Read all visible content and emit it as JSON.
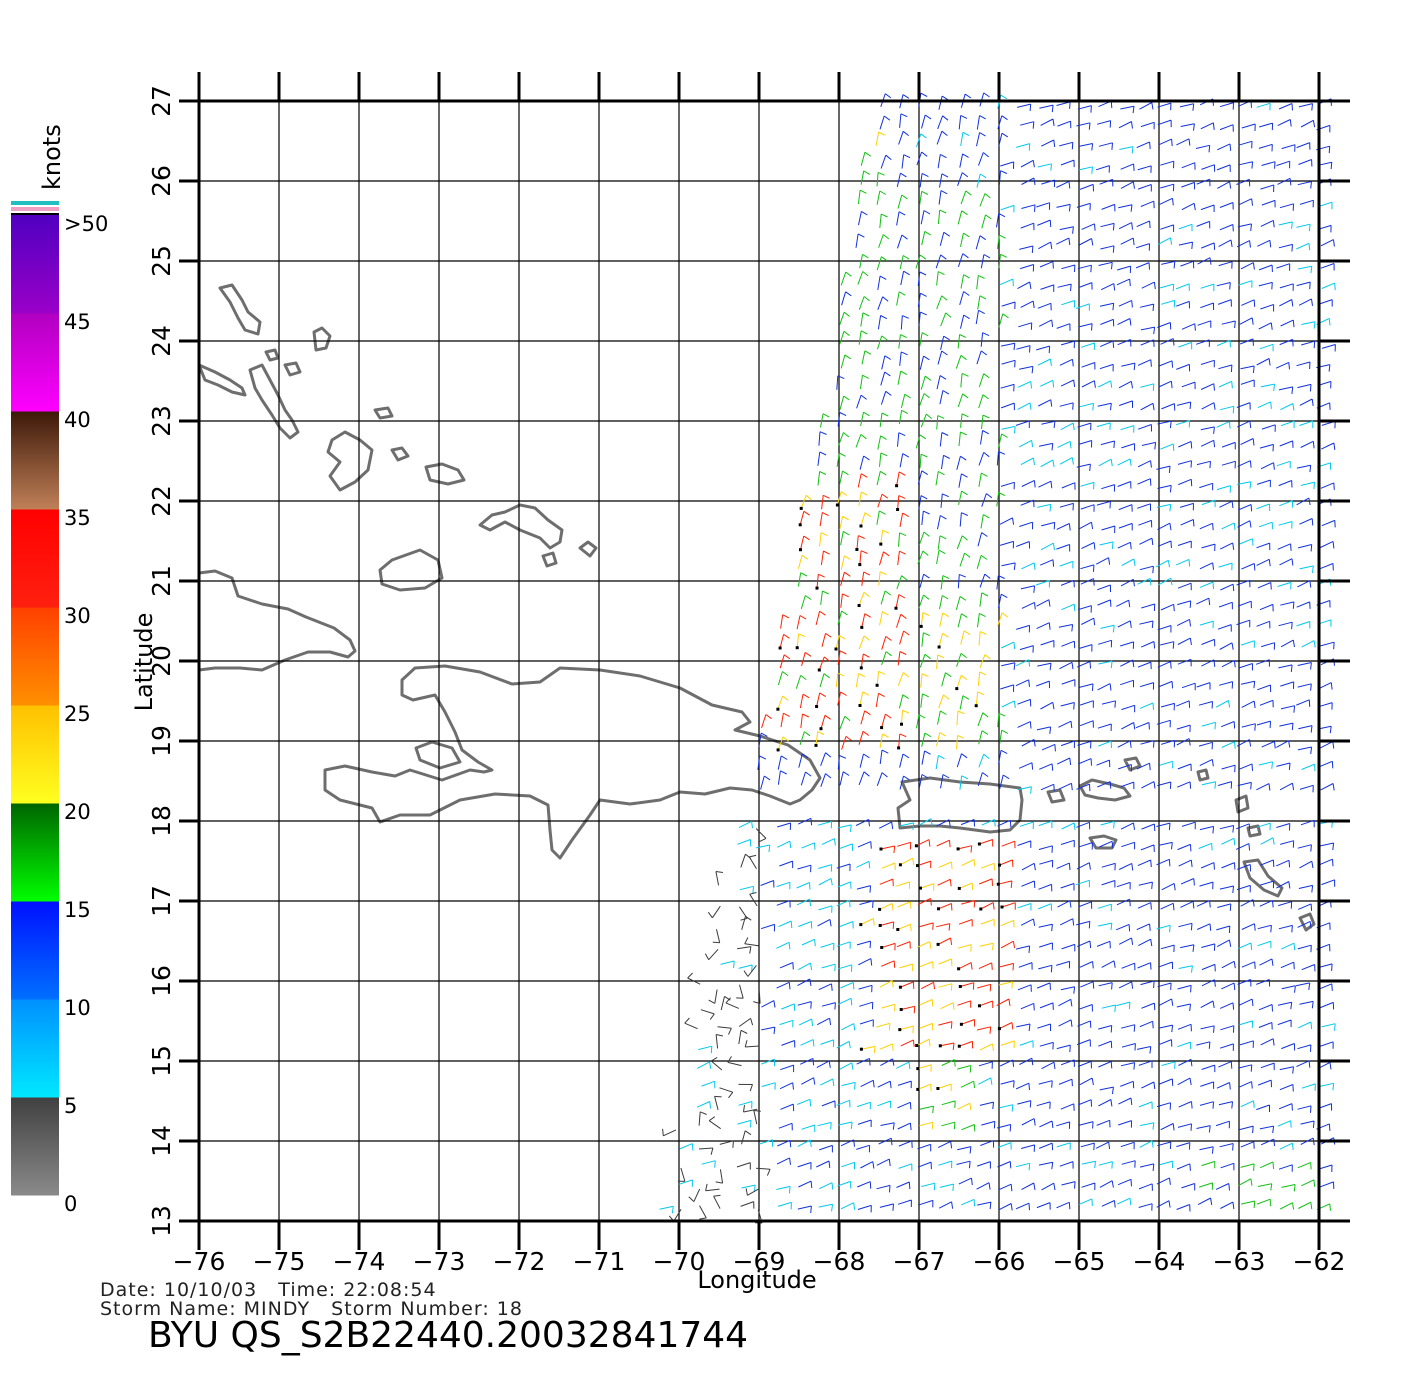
{
  "axes": {
    "xlabel": "Longitude",
    "ylabel": "Latitude",
    "x_ticks": [
      "−76",
      "−75",
      "−74",
      "−73",
      "−72",
      "−71",
      "−70",
      "−69",
      "−68",
      "−67",
      "−66",
      "−65",
      "−64",
      "−63",
      "−62"
    ],
    "y_ticks": [
      "13",
      "14",
      "15",
      "16",
      "17",
      "18",
      "19",
      "20",
      "21",
      "22",
      "23",
      "24",
      "25",
      "26",
      "27"
    ],
    "lon_range": [
      -76,
      -62
    ],
    "lat_range": [
      13,
      27
    ],
    "grid": true
  },
  "colorbar": {
    "title": "knots",
    "labels": [
      ">50",
      "45",
      "40",
      "35",
      "30",
      "25",
      "20",
      "15",
      "10",
      "5",
      "0"
    ],
    "bands": [
      {
        "from": 0,
        "to": 5,
        "top": "#404040",
        "bottom": "#8a8a8a"
      },
      {
        "from": 5,
        "to": 10,
        "top": "#0090ff",
        "bottom": "#00e8ff"
      },
      {
        "from": 10,
        "to": 15,
        "top": "#0010ff",
        "bottom": "#0070ff"
      },
      {
        "from": 15,
        "to": 20,
        "top": "#006400",
        "bottom": "#00ff00"
      },
      {
        "from": 20,
        "to": 25,
        "top": "#ffc000",
        "bottom": "#ffff20"
      },
      {
        "from": 25,
        "to": 30,
        "top": "#ff4000",
        "bottom": "#ff9000"
      },
      {
        "from": 30,
        "to": 35,
        "top": "#ff0000",
        "bottom": "#ff2010"
      },
      {
        "from": 35,
        "to": 40,
        "top": "#3c1808",
        "bottom": "#c08058"
      },
      {
        "from": 40,
        "to": 45,
        "top": "#b000c0",
        "bottom": "#ff00ff"
      },
      {
        "from": 45,
        "to": 50,
        "top": "#5000c0",
        "bottom": "#9a00c8"
      }
    ],
    "cap_colors": [
      "#20c0c0",
      "#f0a0c0"
    ]
  },
  "wind_colors": {
    "calm": "#3a3a3a",
    "light": "#00c8f0",
    "moderate": "#1030e0",
    "fresh": "#10c010",
    "strong": "#ffd000",
    "gale": "#ff2000",
    "rain_flag": "#000000"
  },
  "coast_color": "#6e6e6e",
  "meta": {
    "date_line": "Date: 10/10/03   Time: 22:08:54",
    "storm_line": "Storm Name: MINDY   Storm Number: 18",
    "product_id": "BYU QS_S2B22440.20032841744"
  }
}
